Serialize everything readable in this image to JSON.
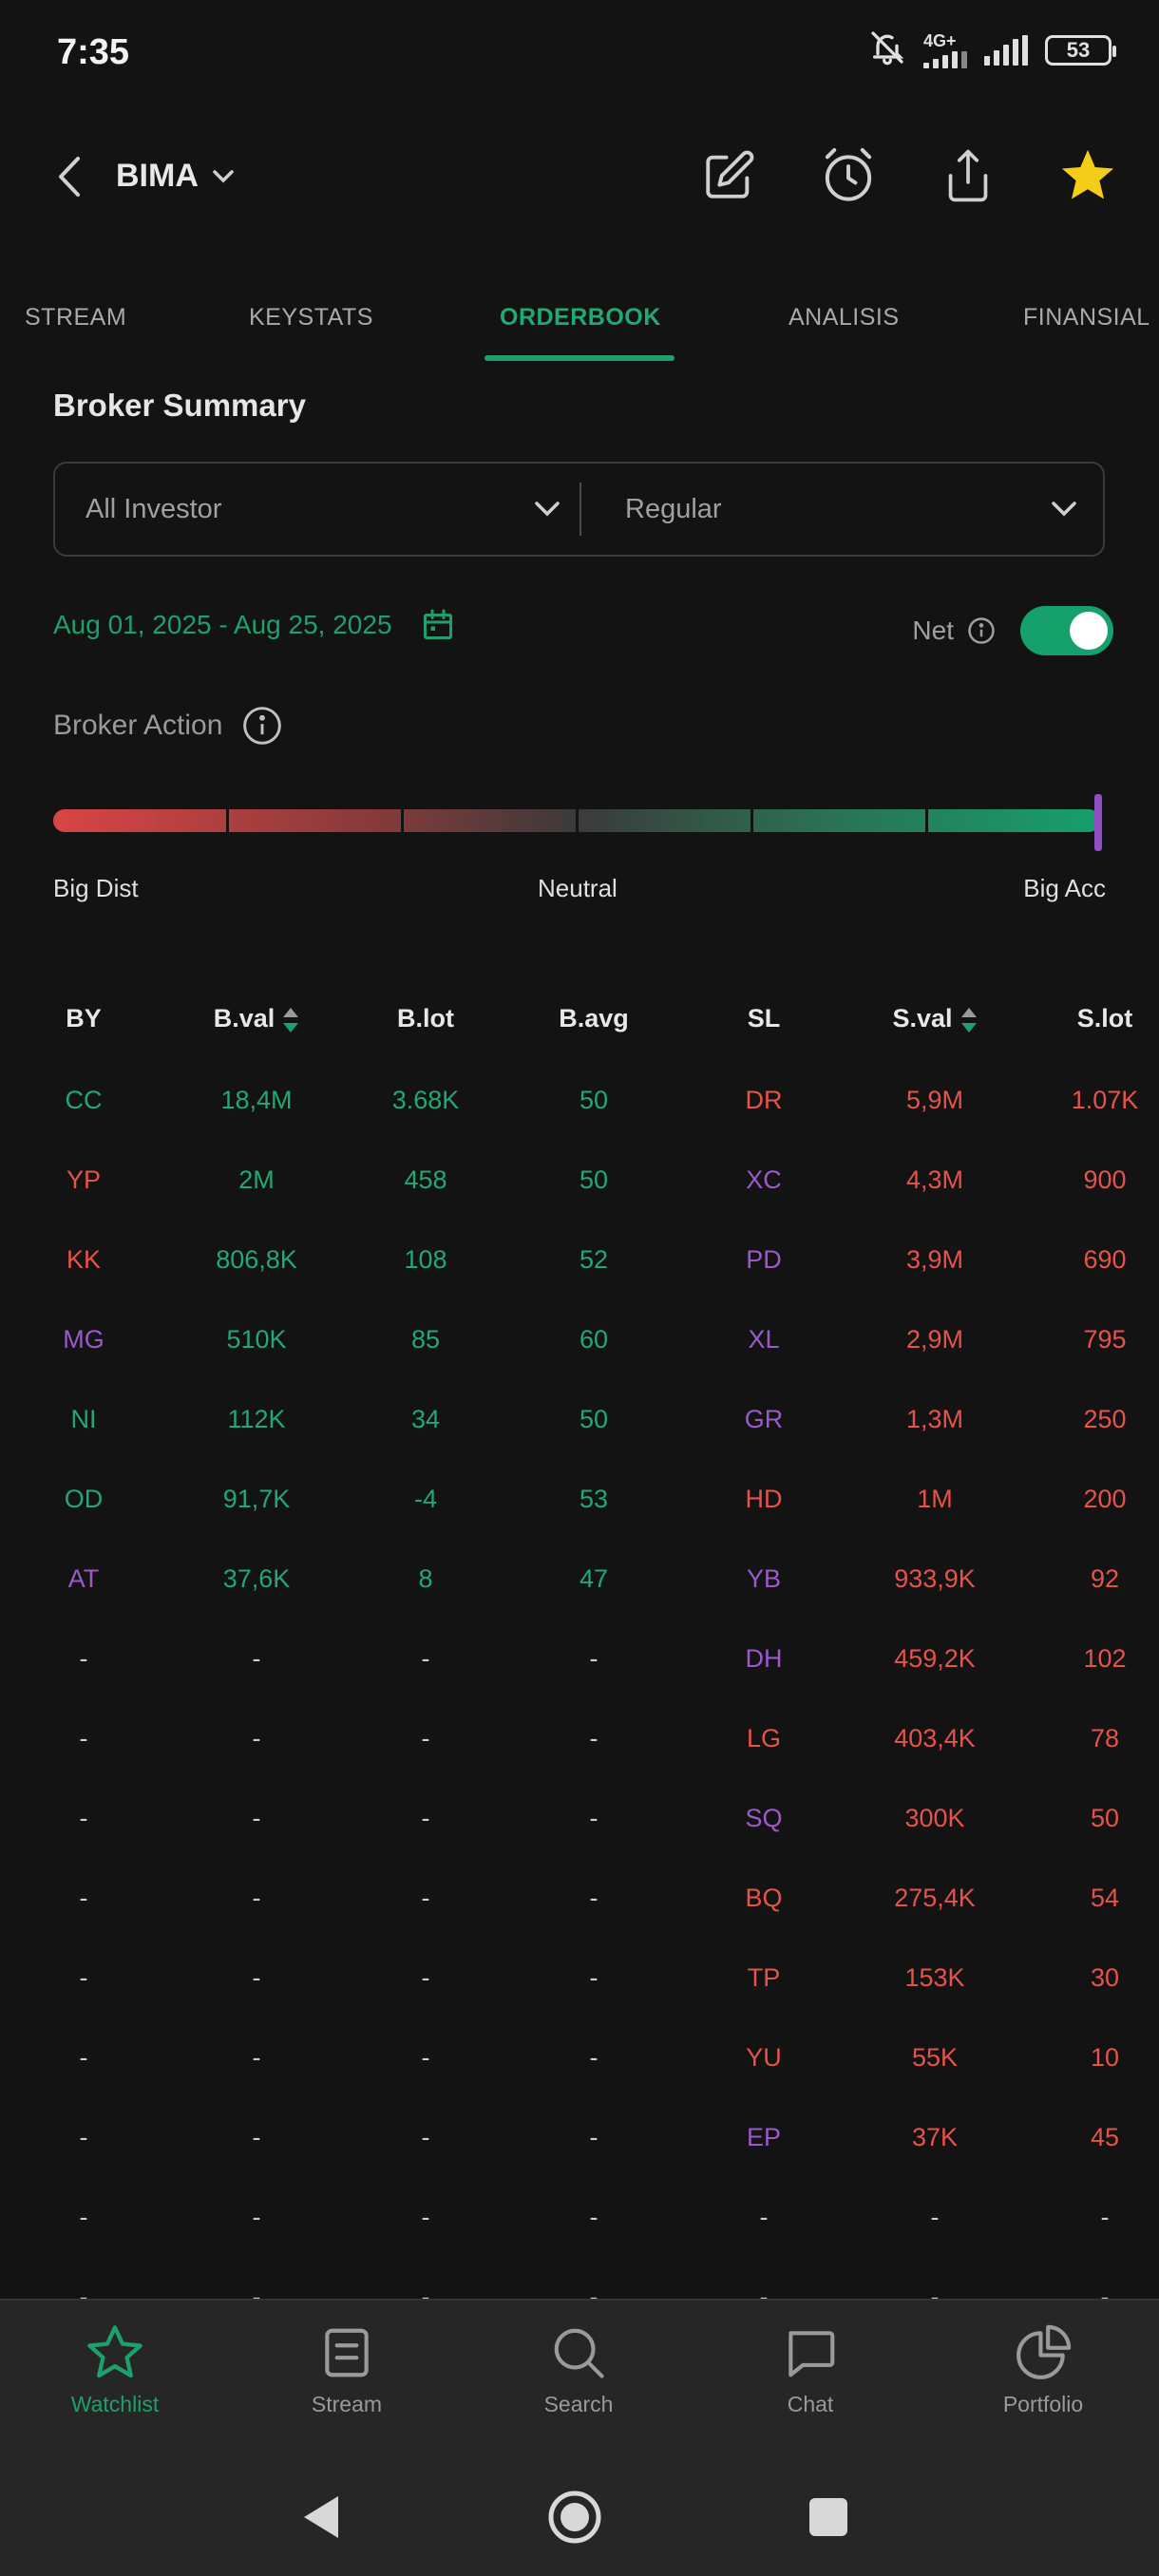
{
  "status_bar": {
    "time": "7:35",
    "network": "4G+",
    "battery": "53"
  },
  "header": {
    "ticker": "BIMA"
  },
  "tabs": [
    {
      "label": "STREAM"
    },
    {
      "label": "KEYSTATS"
    },
    {
      "label": "ORDERBOOK"
    },
    {
      "label": "ANALISIS"
    },
    {
      "label": "FINANSIAL"
    }
  ],
  "section_title": "Broker Summary",
  "filters": {
    "investor": "All Investor",
    "market": "Regular"
  },
  "date_range": "Aug 01, 2025 - Aug 25, 2025",
  "net_label": "Net",
  "net_enabled": true,
  "broker_action": {
    "label": "Broker Action",
    "left": "Big Dist",
    "mid": "Neutral",
    "right": "Big Acc",
    "level": 1.0
  },
  "colors": {
    "green": "#21a875",
    "red": "#e5534b",
    "purple": "#9b59c9",
    "neutral": "#cfcfcf",
    "accent": "#1ea06d"
  },
  "table": {
    "headers": [
      "BY",
      "B.val",
      "B.lot",
      "B.avg",
      "SL",
      "S.val",
      "S.lot"
    ],
    "rows": [
      {
        "by": "CC",
        "by_color": "green",
        "bval": "18,4M",
        "blot": "3.68K",
        "bavg": "50",
        "sl": "DR",
        "sl_color": "red",
        "sval": "5,9M",
        "slot": "1.07K"
      },
      {
        "by": "YP",
        "by_color": "red",
        "bval": "2M",
        "blot": "458",
        "bavg": "50",
        "sl": "XC",
        "sl_color": "purple",
        "sval": "4,3M",
        "slot": "900"
      },
      {
        "by": "KK",
        "by_color": "red",
        "bval": "806,8K",
        "blot": "108",
        "bavg": "52",
        "sl": "PD",
        "sl_color": "purple",
        "sval": "3,9M",
        "slot": "690"
      },
      {
        "by": "MG",
        "by_color": "purple",
        "bval": "510K",
        "blot": "85",
        "bavg": "60",
        "sl": "XL",
        "sl_color": "purple",
        "sval": "2,9M",
        "slot": "795"
      },
      {
        "by": "NI",
        "by_color": "green",
        "bval": "112K",
        "blot": "34",
        "bavg": "50",
        "sl": "GR",
        "sl_color": "purple",
        "sval": "1,3M",
        "slot": "250"
      },
      {
        "by": "OD",
        "by_color": "green",
        "bval": "91,7K",
        "blot": "-4",
        "bavg": "53",
        "sl": "HD",
        "sl_color": "red",
        "sval": "1M",
        "slot": "200"
      },
      {
        "by": "AT",
        "by_color": "purple",
        "bval": "37,6K",
        "blot": "8",
        "bavg": "47",
        "sl": "YB",
        "sl_color": "purple",
        "sval": "933,9K",
        "slot": "92"
      },
      {
        "by": "-",
        "by_color": "neutral",
        "bval": "-",
        "blot": "-",
        "bavg": "-",
        "sl": "DH",
        "sl_color": "purple",
        "sval": "459,2K",
        "slot": "102"
      },
      {
        "by": "-",
        "by_color": "neutral",
        "bval": "-",
        "blot": "-",
        "bavg": "-",
        "sl": "LG",
        "sl_color": "red",
        "sval": "403,4K",
        "slot": "78"
      },
      {
        "by": "-",
        "by_color": "neutral",
        "bval": "-",
        "blot": "-",
        "bavg": "-",
        "sl": "SQ",
        "sl_color": "purple",
        "sval": "300K",
        "slot": "50"
      },
      {
        "by": "-",
        "by_color": "neutral",
        "bval": "-",
        "blot": "-",
        "bavg": "-",
        "sl": "BQ",
        "sl_color": "red",
        "sval": "275,4K",
        "slot": "54"
      },
      {
        "by": "-",
        "by_color": "neutral",
        "bval": "-",
        "blot": "-",
        "bavg": "-",
        "sl": "TP",
        "sl_color": "red",
        "sval": "153K",
        "slot": "30"
      },
      {
        "by": "-",
        "by_color": "neutral",
        "bval": "-",
        "blot": "-",
        "bavg": "-",
        "sl": "YU",
        "sl_color": "red",
        "sval": "55K",
        "slot": "10"
      },
      {
        "by": "-",
        "by_color": "neutral",
        "bval": "-",
        "blot": "-",
        "bavg": "-",
        "sl": "EP",
        "sl_color": "purple",
        "sval": "37K",
        "slot": "45"
      },
      {
        "by": "-",
        "by_color": "neutral",
        "bval": "-",
        "blot": "-",
        "bavg": "-",
        "sl": "-",
        "sl_color": "neutral",
        "sval": "-",
        "slot": "-"
      },
      {
        "by": "-",
        "by_color": "neutral",
        "bval": "-",
        "blot": "-",
        "bavg": "-",
        "sl": "-",
        "sl_color": "neutral",
        "sval": "-",
        "slot": "-"
      }
    ]
  },
  "bottom_nav": [
    {
      "label": "Watchlist",
      "icon": "star-outline-icon",
      "active": true
    },
    {
      "label": "Stream",
      "icon": "document-icon",
      "active": false
    },
    {
      "label": "Search",
      "icon": "search-icon",
      "active": false
    },
    {
      "label": "Chat",
      "icon": "chat-icon",
      "active": false
    },
    {
      "label": "Portfolio",
      "icon": "pie-chart-icon",
      "active": false
    }
  ]
}
